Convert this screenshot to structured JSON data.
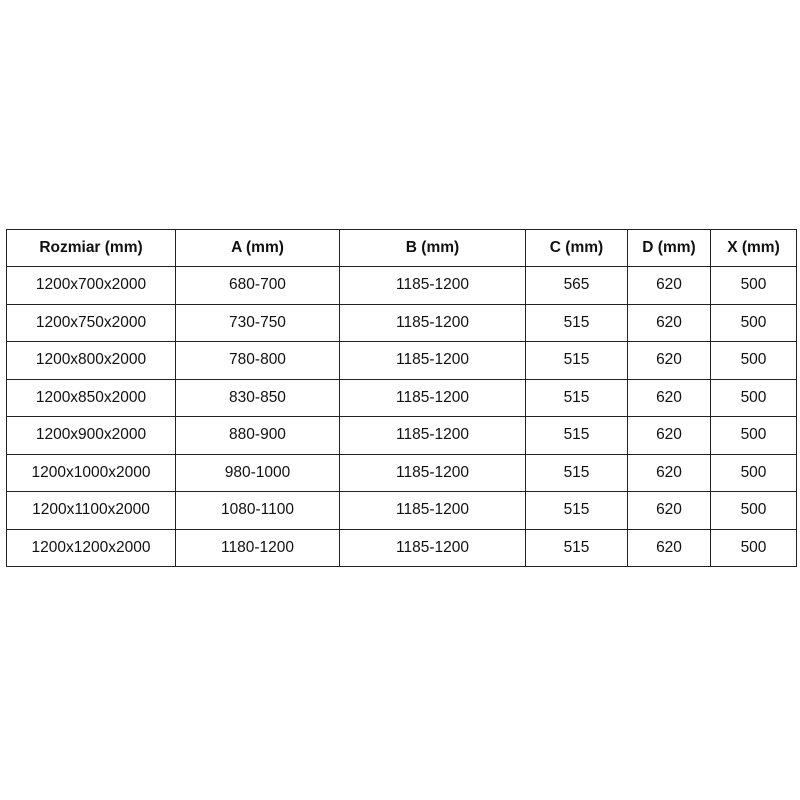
{
  "table": {
    "headers": [
      "Rozmiar (mm)",
      "A (mm)",
      "B (mm)",
      "C (mm)",
      "D (mm)",
      "X (mm)"
    ],
    "rows": [
      [
        "1200x700x2000",
        "680-700",
        "1185-1200",
        "565",
        "620",
        "500"
      ],
      [
        "1200x750x2000",
        "730-750",
        "1185-1200",
        "515",
        "620",
        "500"
      ],
      [
        "1200x800x2000",
        "780-800",
        "1185-1200",
        "515",
        "620",
        "500"
      ],
      [
        "1200x850x2000",
        "830-850",
        "1185-1200",
        "515",
        "620",
        "500"
      ],
      [
        "1200x900x2000",
        "880-900",
        "1185-1200",
        "515",
        "620",
        "500"
      ],
      [
        "1200x1000x2000",
        "980-1000",
        "1185-1200",
        "515",
        "620",
        "500"
      ],
      [
        "1200x1100x2000",
        "1080-1100",
        "1185-1200",
        "515",
        "620",
        "500"
      ],
      [
        "1200x1200x2000",
        "1180-1200",
        "1185-1200",
        "515",
        "620",
        "500"
      ]
    ]
  }
}
